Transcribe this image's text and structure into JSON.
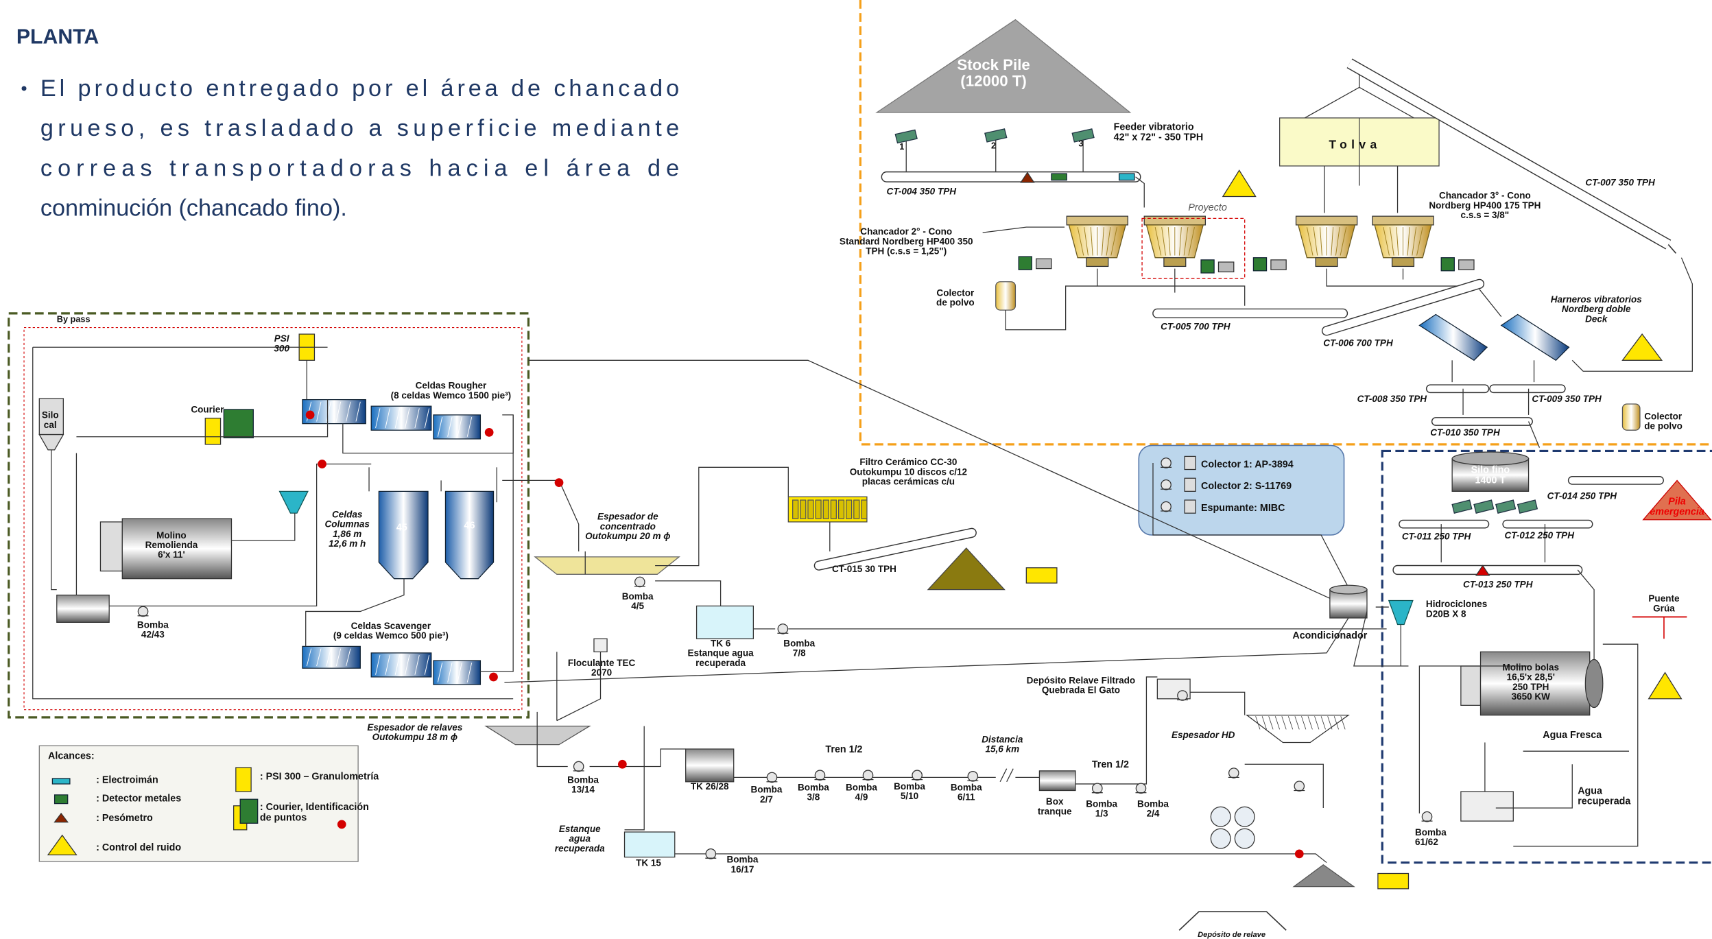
{
  "header": {
    "title": "PLANTA",
    "bullet": {
      "lines": [
        "El producto entregado por el área de chancado",
        "grueso, es trasladado a superficie mediante",
        "correas transportadoras hacia el área de",
        "conminución (chancado fino)."
      ]
    }
  },
  "diagram": {
    "labels": [
      {
        "lines": [
          "Stock Pile",
          "(12000 T)"
        ]
      },
      {
        "lines": [
          "Feeder vibratorio",
          "42\" x 72\" - 350 TPH"
        ]
      },
      {
        "lines": [
          "1"
        ]
      },
      {
        "lines": [
          "2"
        ]
      },
      {
        "lines": [
          "3"
        ]
      },
      {
        "lines": [
          "CT-004 350 TPH"
        ]
      },
      {
        "lines": [
          "Tolva"
        ]
      },
      {
        "lines": [
          "CT-007 350 TPH"
        ]
      },
      {
        "lines": [
          "Proyecto"
        ]
      },
      {
        "lines": [
          "Chancador 3° - Cono",
          "Nordberg HP400 175 TPH",
          "c.s.s = 3/8\""
        ]
      },
      {
        "lines": [
          "Chancador 2° - Cono",
          "Standard Nordberg HP400 350",
          "TPH    (c.s.s = 1,25\")"
        ]
      },
      {
        "lines": [
          "Colector",
          "de polvo"
        ]
      },
      {
        "lines": [
          "CT-005  700 TPH"
        ]
      },
      {
        "lines": [
          "CT-006 700 TPH"
        ]
      },
      {
        "lines": [
          "Harneros vibratorios",
          "Nordberg doble",
          "Deck"
        ]
      },
      {
        "lines": [
          "CT-008  350 TPH"
        ]
      },
      {
        "lines": [
          "CT-009  350 TPH"
        ]
      },
      {
        "lines": [
          "CT-010   350 TPH"
        ]
      },
      {
        "lines": [
          "Colector",
          "de polvo"
        ]
      },
      {
        "lines": [
          "Colector 1: AP-3894"
        ]
      },
      {
        "lines": [
          "Colector 2: S-11769"
        ]
      },
      {
        "lines": [
          "Espumante: MIBC"
        ]
      },
      {
        "lines": [
          "Silo fino",
          "1400 T"
        ]
      },
      {
        "lines": [
          "CT-014   250 TPH"
        ]
      },
      {
        "lines": [
          "Pila",
          "emergencia"
        ]
      },
      {
        "lines": [
          "CT-011  250 TPH"
        ]
      },
      {
        "lines": [
          "CT-012  250 TPH"
        ]
      },
      {
        "lines": [
          "CT-013  250 TPH"
        ]
      },
      {
        "lines": [
          "Hidrociclones",
          "D20B X 8"
        ]
      },
      {
        "lines": [
          "Acondicionador"
        ]
      },
      {
        "lines": [
          "Puente",
          "Grúa"
        ]
      },
      {
        "lines": [
          "Molino bolas",
          "16,5'x 28,5'",
          "250 TPH",
          "3650 KW"
        ]
      },
      {
        "lines": [
          "Agua Fresca"
        ]
      },
      {
        "lines": [
          "Agua",
          "recuperada"
        ]
      },
      {
        "lines": [
          "Bomba",
          "61/62"
        ]
      },
      {
        "lines": [
          "By pass"
        ]
      },
      {
        "lines": [
          "PSI",
          "300"
        ]
      },
      {
        "lines": [
          "Courier"
        ]
      },
      {
        "lines": [
          "Celdas Rougher",
          "(8 celdas Wemco 1500 pie³)"
        ]
      },
      {
        "lines": [
          "Silo",
          "cal"
        ]
      },
      {
        "lines": [
          "Celdas",
          "Columnas",
          "1,86 m",
          "12,6 m h"
        ]
      },
      {
        "lines": [
          "45"
        ]
      },
      {
        "lines": [
          "46"
        ]
      },
      {
        "lines": [
          "Molino",
          "Remolienda",
          "6'x 11'"
        ]
      },
      {
        "lines": [
          "Bomba",
          "42/43"
        ]
      },
      {
        "lines": [
          "Celdas Scavenger",
          "(9 celdas Wemco 500 pie³)"
        ]
      },
      {
        "lines": [
          "Espesador de",
          "concentrado",
          "Outokumpu 20 m ϕ"
        ]
      },
      {
        "lines": [
          "Bomba",
          "4/5"
        ]
      },
      {
        "lines": [
          "Filtro Cerámico  CC-30",
          "Outokumpu 10 discos c/12",
          "placas cerámicas c/u"
        ]
      },
      {
        "lines": [
          "CT-015  30 TPH"
        ]
      },
      {
        "lines": [
          "TK 6",
          "Estanque agua",
          "recuperada"
        ]
      },
      {
        "lines": [
          "Bomba",
          "7/8"
        ]
      },
      {
        "lines": [
          "Floculante TEC",
          "2070"
        ]
      },
      {
        "lines": [
          "Espesador de relaves",
          "Outokumpu 18 m ϕ"
        ]
      },
      {
        "lines": [
          "Bomba",
          "13/14"
        ]
      },
      {
        "lines": [
          "TK 26/28"
        ]
      },
      {
        "lines": [
          "Tren 1/2"
        ]
      },
      {
        "lines": [
          "Bomba",
          "2/7"
        ]
      },
      {
        "lines": [
          "Bomba",
          "3/8"
        ]
      },
      {
        "lines": [
          "Bomba",
          "4/9"
        ]
      },
      {
        "lines": [
          "Bomba",
          "5/10"
        ]
      },
      {
        "lines": [
          "Bomba",
          "6/11"
        ]
      },
      {
        "lines": [
          "Distancia",
          "15,6 km"
        ]
      },
      {
        "lines": [
          "Box",
          "tranque"
        ]
      },
      {
        "lines": [
          "Tren 1/2"
        ]
      },
      {
        "lines": [
          "Bomba",
          "1/3"
        ]
      },
      {
        "lines": [
          "Bomba",
          "2/4"
        ]
      },
      {
        "lines": [
          "Depósito  Relave Filtrado",
          "Quebrada  El Gato"
        ]
      },
      {
        "lines": [
          "Espesador HD"
        ]
      },
      {
        "lines": [
          "Estanque",
          "agua",
          "recuperada"
        ]
      },
      {
        "lines": [
          "TK 15"
        ]
      },
      {
        "lines": [
          "Bomba",
          "16/17"
        ]
      },
      {
        "lines": [
          "Depósito de relave"
        ]
      }
    ]
  },
  "legend": {
    "title": "Alcances:",
    "items": [
      {
        "lines": [
          ": Electroimán"
        ]
      },
      {
        "lines": [
          ": Detector  metales"
        ]
      },
      {
        "lines": [
          ": Pesómetro"
        ]
      },
      {
        "lines": [
          ": Control  del ruido"
        ]
      },
      {
        "lines": [
          ": PSI 300 – Granulometría"
        ]
      },
      {
        "lines": [
          ": Courier, Identificación",
          "de puntos"
        ]
      }
    ]
  }
}
